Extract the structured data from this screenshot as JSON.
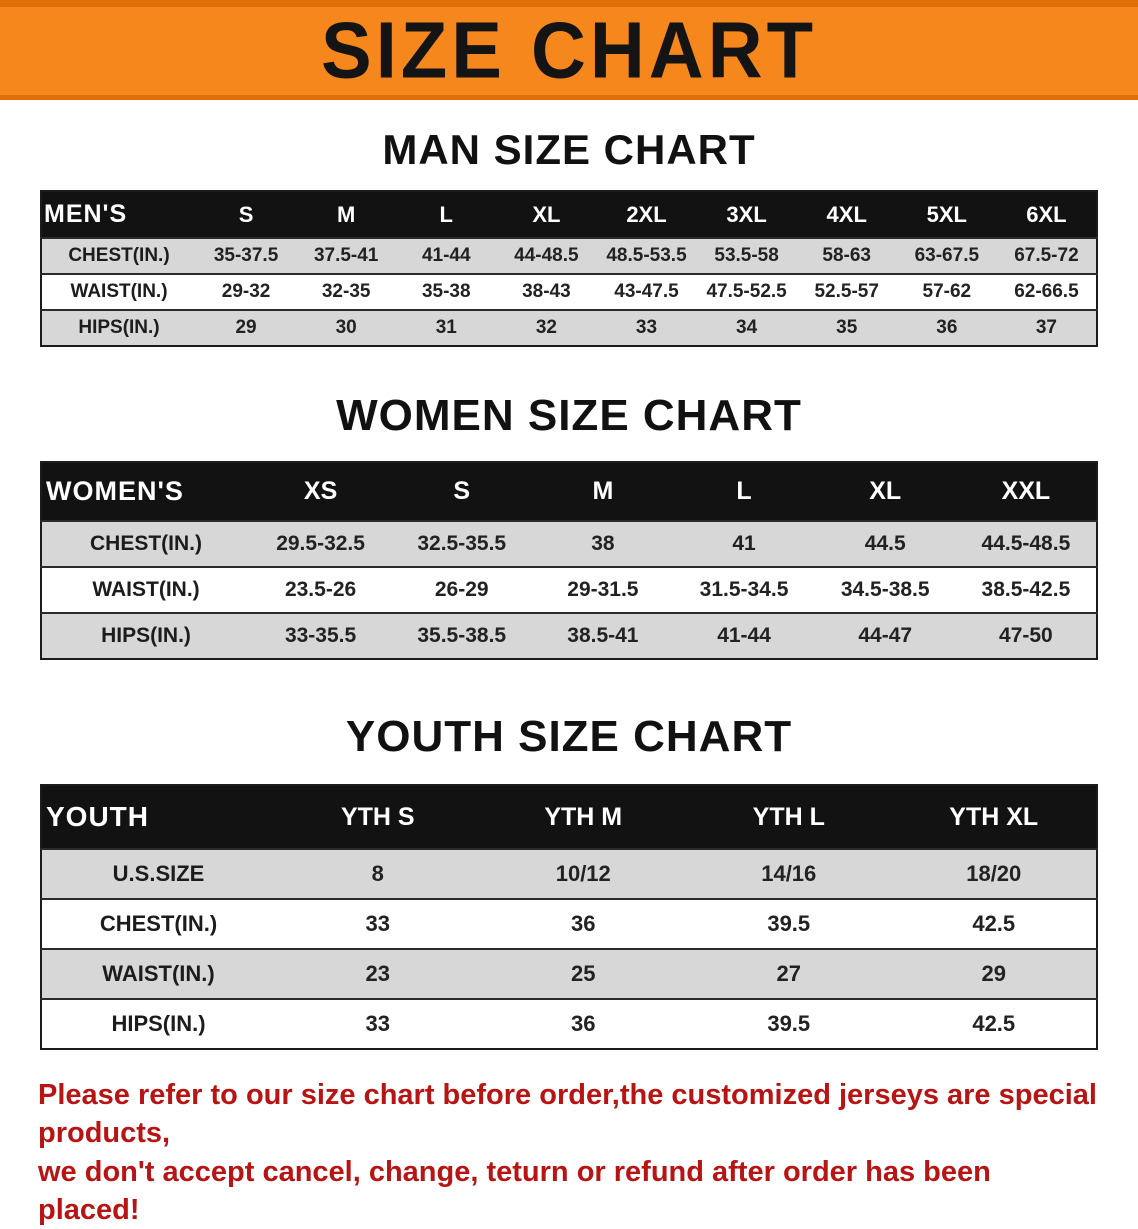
{
  "banner": {
    "title": "SIZE CHART",
    "background": "#f6871d"
  },
  "colors": {
    "header_bg": "#121212",
    "stripe": "#d7d7d7",
    "disclaimer_red": "#b81414"
  },
  "sections": [
    {
      "heading": "MAN SIZE CHART",
      "header_label": "MEN'S",
      "columns": [
        "S",
        "M",
        "L",
        "XL",
        "2XL",
        "3XL",
        "4XL",
        "5XL",
        "6XL"
      ],
      "rows": [
        {
          "label": "CHEST(IN.)",
          "values": [
            "35-37.5",
            "37.5-41",
            "41-44",
            "44-48.5",
            "48.5-53.5",
            "53.5-58",
            "58-63",
            "63-67.5",
            "67.5-72"
          ]
        },
        {
          "label": "WAIST(IN.)",
          "values": [
            "29-32",
            "32-35",
            "35-38",
            "38-43",
            "43-47.5",
            "47.5-52.5",
            "52.5-57",
            "57-62",
            "62-66.5"
          ]
        },
        {
          "label": "HIPS(IN.)",
          "values": [
            "29",
            "30",
            "31",
            "32",
            "33",
            "34",
            "35",
            "36",
            "37"
          ]
        }
      ]
    },
    {
      "heading": "WOMEN SIZE CHART",
      "header_label": "WOMEN'S",
      "columns": [
        "XS",
        "S",
        "M",
        "L",
        "XL",
        "XXL"
      ],
      "rows": [
        {
          "label": "CHEST(IN.)",
          "values": [
            "29.5-32.5",
            "32.5-35.5",
            "38",
            "41",
            "44.5",
            "44.5-48.5"
          ]
        },
        {
          "label": "WAIST(IN.)",
          "values": [
            "23.5-26",
            "26-29",
            "29-31.5",
            "31.5-34.5",
            "34.5-38.5",
            "38.5-42.5"
          ]
        },
        {
          "label": "HIPS(IN.)",
          "values": [
            "33-35.5",
            "35.5-38.5",
            "38.5-41",
            "41-44",
            "44-47",
            "47-50"
          ]
        }
      ]
    },
    {
      "heading": "YOUTH SIZE CHART",
      "header_label": "YOUTH",
      "columns": [
        "YTH S",
        "YTH M",
        "YTH L",
        "YTH XL"
      ],
      "rows": [
        {
          "label": "U.S.SIZE",
          "values": [
            "8",
            "10/12",
            "14/16",
            "18/20"
          ]
        },
        {
          "label": "CHEST(IN.)",
          "values": [
            "33",
            "36",
            "39.5",
            "42.5"
          ]
        },
        {
          "label": "WAIST(IN.)",
          "values": [
            "23",
            "25",
            "27",
            "29"
          ]
        },
        {
          "label": "HIPS(IN.)",
          "values": [
            "33",
            "36",
            "39.5",
            "42.5"
          ]
        }
      ]
    }
  ],
  "footer": {
    "lines": [
      "Please refer to our size chart before order,the customized jerseys are special products,",
      "we don't accept cancel, change, teturn or refund after order has been placed!"
    ]
  }
}
